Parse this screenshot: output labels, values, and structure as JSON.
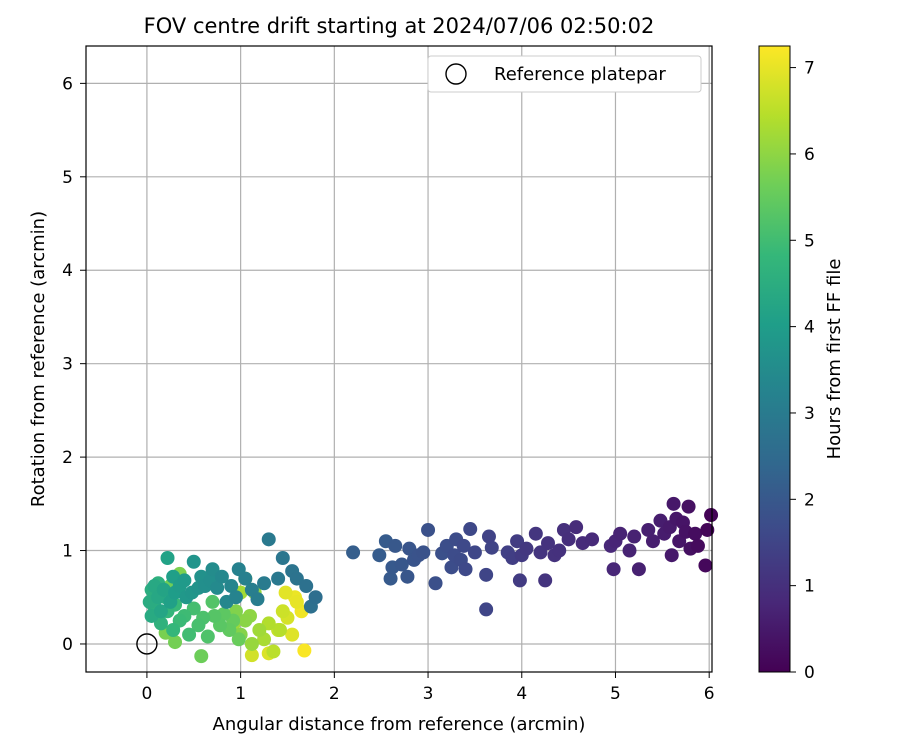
{
  "chart_data": {
    "type": "scatter",
    "title": "FOV centre drift starting at 2024/07/06 02:50:02",
    "xlabel": "Angular distance from reference (arcmin)",
    "ylabel": "Rotation from reference (arcmin)",
    "xlim": [
      -0.65,
      6.03
    ],
    "ylim": [
      -0.3,
      6.4
    ],
    "xticks": [
      "0",
      "1",
      "2",
      "3",
      "4",
      "5",
      "6"
    ],
    "yticks": [
      "0",
      "1",
      "2",
      "3",
      "4",
      "5",
      "6"
    ],
    "grid": true,
    "legend": {
      "position": "top-right",
      "entries": [
        "Reference platepar"
      ]
    },
    "colorbar": {
      "label": "Hours from first FF file",
      "colormap": "viridis",
      "range": [
        0,
        7.25
      ],
      "ticks": [
        "0",
        "1",
        "2",
        "3",
        "4",
        "5",
        "6",
        "7"
      ]
    },
    "reference_point": {
      "x": 0,
      "y": 0
    },
    "points": [
      [
        6.02,
        1.38,
        0.05
      ],
      [
        5.98,
        1.22,
        0.1
      ],
      [
        5.96,
        0.84,
        0.15
      ],
      [
        5.88,
        1.05,
        0.2
      ],
      [
        5.85,
        1.18,
        0.25
      ],
      [
        5.8,
        1.02,
        0.3
      ],
      [
        5.78,
        1.47,
        0.32
      ],
      [
        5.75,
        1.2,
        0.35
      ],
      [
        5.72,
        1.3,
        0.4
      ],
      [
        5.68,
        1.1,
        0.42
      ],
      [
        5.65,
        1.34,
        0.45
      ],
      [
        5.62,
        1.5,
        0.48
      ],
      [
        5.6,
        0.95,
        0.5
      ],
      [
        5.58,
        1.25,
        0.52
      ],
      [
        5.52,
        1.18,
        0.55
      ],
      [
        5.48,
        1.32,
        0.58
      ],
      [
        5.4,
        1.1,
        0.6
      ],
      [
        5.35,
        1.22,
        0.62
      ],
      [
        5.25,
        0.8,
        0.65
      ],
      [
        5.2,
        1.15,
        0.68
      ],
      [
        5.15,
        1.0,
        0.7
      ],
      [
        5.05,
        1.18,
        0.72
      ],
      [
        5.0,
        1.1,
        0.75
      ],
      [
        4.98,
        0.8,
        0.78
      ],
      [
        4.95,
        1.05,
        0.8
      ],
      [
        4.75,
        1.12,
        0.85
      ],
      [
        4.65,
        1.08,
        0.88
      ],
      [
        4.58,
        1.25,
        0.9
      ],
      [
        4.5,
        1.12,
        0.95
      ],
      [
        4.45,
        1.22,
        1.0
      ],
      [
        4.4,
        1.0,
        1.02
      ],
      [
        4.35,
        0.95,
        1.05
      ],
      [
        4.28,
        1.08,
        1.08
      ],
      [
        4.25,
        0.68,
        1.1
      ],
      [
        4.2,
        0.98,
        1.12
      ],
      [
        4.15,
        1.18,
        1.15
      ],
      [
        4.05,
        1.02,
        1.2
      ],
      [
        4.0,
        0.95,
        1.25
      ],
      [
        3.98,
        0.68,
        1.28
      ],
      [
        3.95,
        1.1,
        1.3
      ],
      [
        3.9,
        0.92,
        1.35
      ],
      [
        3.85,
        0.98,
        1.4
      ],
      [
        3.65,
        1.15,
        1.45
      ],
      [
        3.68,
        1.03,
        1.48
      ],
      [
        3.62,
        0.74,
        1.5
      ],
      [
        3.62,
        0.37,
        1.52
      ],
      [
        3.5,
        0.98,
        1.55
      ],
      [
        3.45,
        1.23,
        1.58
      ],
      [
        3.4,
        0.8,
        1.6
      ],
      [
        3.38,
        1.05,
        1.62
      ],
      [
        3.35,
        0.9,
        1.65
      ],
      [
        3.3,
        1.12,
        1.68
      ],
      [
        3.28,
        0.95,
        1.7
      ],
      [
        3.25,
        0.82,
        1.72
      ],
      [
        3.2,
        1.05,
        1.75
      ],
      [
        3.15,
        0.97,
        1.78
      ],
      [
        3.08,
        0.65,
        1.8
      ],
      [
        3.0,
        1.22,
        1.82
      ],
      [
        2.95,
        0.98,
        1.85
      ],
      [
        2.9,
        0.95,
        1.88
      ],
      [
        2.85,
        0.9,
        1.9
      ],
      [
        2.8,
        1.02,
        1.92
      ],
      [
        2.78,
        0.72,
        1.95
      ],
      [
        2.72,
        0.85,
        1.98
      ],
      [
        2.65,
        1.05,
        2.0
      ],
      [
        2.62,
        0.82,
        2.02
      ],
      [
        2.6,
        0.7,
        2.05
      ],
      [
        2.55,
        1.1,
        2.08
      ],
      [
        2.48,
        0.95,
        2.1
      ],
      [
        2.2,
        0.98,
        2.15
      ],
      [
        1.8,
        0.5,
        2.6
      ],
      [
        1.75,
        0.4,
        2.65
      ],
      [
        1.7,
        0.62,
        2.7
      ],
      [
        1.6,
        0.7,
        2.75
      ],
      [
        1.55,
        0.78,
        2.8
      ],
      [
        1.45,
        0.92,
        2.85
      ],
      [
        1.4,
        0.7,
        2.9
      ],
      [
        1.3,
        1.12,
        2.95
      ],
      [
        1.25,
        0.65,
        3.0
      ],
      [
        1.18,
        0.48,
        3.05
      ],
      [
        1.12,
        0.58,
        3.1
      ],
      [
        1.05,
        0.7,
        3.15
      ],
      [
        0.98,
        0.8,
        3.2
      ],
      [
        0.95,
        0.5,
        3.25
      ],
      [
        0.9,
        0.62,
        3.3
      ],
      [
        0.85,
        0.45,
        3.35
      ],
      [
        0.8,
        0.72,
        3.4
      ],
      [
        0.75,
        0.6,
        3.45
      ],
      [
        0.7,
        0.8,
        3.5
      ],
      [
        0.68,
        0.68,
        3.55
      ],
      [
        0.62,
        0.62,
        3.6
      ],
      [
        0.58,
        0.72,
        3.65
      ],
      [
        0.55,
        0.6,
        3.7
      ],
      [
        0.5,
        0.88,
        3.75
      ],
      [
        0.48,
        0.55,
        3.8
      ],
      [
        0.42,
        0.5,
        3.85
      ],
      [
        0.4,
        0.68,
        3.9
      ],
      [
        0.35,
        0.62,
        3.95
      ],
      [
        0.3,
        0.55,
        4.0
      ],
      [
        0.28,
        0.72,
        4.05
      ],
      [
        0.25,
        0.45,
        4.1
      ],
      [
        0.22,
        0.92,
        4.15
      ],
      [
        0.18,
        0.58,
        4.2
      ],
      [
        0.15,
        0.35,
        4.25
      ],
      [
        0.12,
        0.5,
        4.3
      ],
      [
        0.08,
        0.62,
        4.35
      ],
      [
        0.05,
        0.3,
        4.4
      ],
      [
        0.03,
        0.45,
        4.45
      ],
      [
        0.05,
        0.58,
        4.5
      ],
      [
        0.08,
        0.4,
        4.55
      ],
      [
        0.12,
        0.65,
        4.6
      ],
      [
        0.15,
        0.22,
        4.65
      ],
      [
        0.2,
        0.5,
        4.7
      ],
      [
        0.22,
        0.35,
        4.75
      ],
      [
        0.28,
        0.15,
        4.8
      ],
      [
        0.3,
        0.42,
        4.85
      ],
      [
        0.35,
        0.25,
        4.9
      ],
      [
        0.4,
        0.3,
        4.95
      ],
      [
        0.45,
        0.1,
        5.0
      ],
      [
        0.5,
        0.38,
        5.05
      ],
      [
        0.55,
        0.2,
        5.1
      ],
      [
        0.6,
        0.28,
        5.15
      ],
      [
        0.65,
        0.08,
        5.2
      ],
      [
        0.7,
        0.45,
        5.25
      ],
      [
        0.72,
        0.3,
        5.3
      ],
      [
        0.78,
        0.2,
        5.35
      ],
      [
        0.82,
        0.32,
        5.4
      ],
      [
        0.88,
        0.15,
        5.45
      ],
      [
        0.92,
        0.25,
        5.5
      ],
      [
        0.98,
        0.05,
        5.55
      ],
      [
        0.58,
        -0.13,
        5.6
      ],
      [
        0.25,
        0.62,
        5.65
      ],
      [
        0.3,
        0.02,
        5.7
      ],
      [
        0.2,
        0.12,
        5.75
      ],
      [
        0.35,
        0.75,
        5.8
      ],
      [
        0.95,
        0.35,
        5.85
      ],
      [
        1.0,
        0.1,
        5.9
      ],
      [
        1.05,
        0.25,
        5.95
      ],
      [
        1.1,
        0.3,
        6.0
      ],
      [
        1.15,
        0.55,
        6.05
      ],
      [
        1.12,
        0.0,
        6.1
      ],
      [
        1.2,
        0.15,
        6.2
      ],
      [
        1.25,
        0.05,
        6.3
      ],
      [
        1.3,
        0.22,
        6.4
      ],
      [
        1.35,
        -0.08,
        6.5
      ],
      [
        1.4,
        0.15,
        6.6
      ],
      [
        1.45,
        0.35,
        6.7
      ],
      [
        1.5,
        0.28,
        6.8
      ],
      [
        1.55,
        0.1,
        6.9
      ],
      [
        1.6,
        0.45,
        7.0
      ],
      [
        1.65,
        0.35,
        7.1
      ],
      [
        1.68,
        -0.07,
        7.2
      ],
      [
        1.05,
        0.7,
        6.55
      ],
      [
        1.48,
        0.55,
        6.95
      ],
      [
        1.58,
        0.5,
        7.05
      ],
      [
        1.12,
        -0.12,
        6.75
      ],
      [
        1.3,
        -0.1,
        6.85
      ],
      [
        1.42,
        0.15,
        6.45
      ],
      [
        1.0,
        0.55,
        6.25
      ],
      [
        0.92,
        0.2,
        6.15
      ]
    ]
  }
}
